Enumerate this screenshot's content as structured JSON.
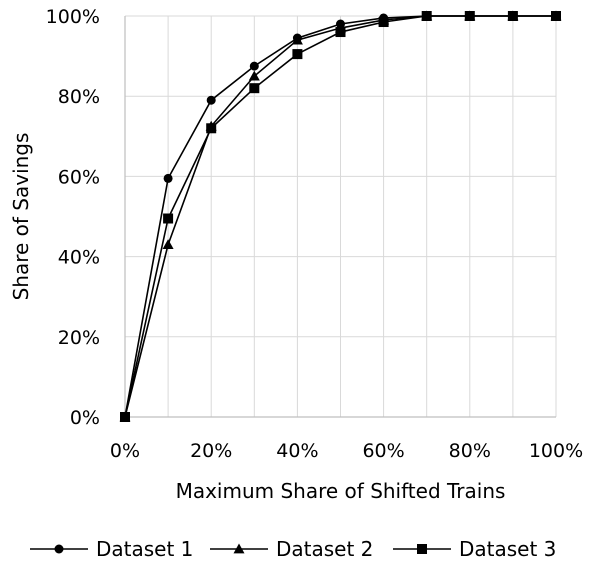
{
  "chart_data": {
    "type": "line",
    "title": "",
    "xlabel": "Maximum Share of Shifted Trains",
    "ylabel": "Share of Savings",
    "x": [
      0,
      10,
      20,
      30,
      40,
      50,
      60,
      70,
      80,
      90,
      100
    ],
    "xlim": [
      0,
      100
    ],
    "ylim": [
      0,
      100
    ],
    "x_ticks": [
      0,
      20,
      40,
      60,
      80,
      100
    ],
    "y_ticks": [
      0,
      20,
      40,
      60,
      80,
      100
    ],
    "x_tick_labels": [
      "0%",
      "20%",
      "40%",
      "60%",
      "80%",
      "100%"
    ],
    "y_tick_labels": [
      "0%",
      "20%",
      "40%",
      "60%",
      "80%",
      "100%"
    ],
    "grid": true,
    "legend_position": "bottom",
    "series": [
      {
        "name": "Dataset 1",
        "marker": "circle",
        "color": "#000000",
        "values": [
          0,
          59.5,
          79,
          87.5,
          94.5,
          98,
          99.5,
          100,
          100,
          100,
          100
        ]
      },
      {
        "name": "Dataset 2",
        "marker": "triangle",
        "color": "#000000",
        "values": [
          0,
          43,
          72.5,
          85,
          94,
          97,
          99,
          100,
          100,
          100,
          100
        ]
      },
      {
        "name": "Dataset 3",
        "marker": "square",
        "color": "#000000",
        "values": [
          0,
          49.5,
          72,
          82,
          90.5,
          96,
          98.5,
          100,
          100,
          100,
          100
        ]
      }
    ]
  }
}
